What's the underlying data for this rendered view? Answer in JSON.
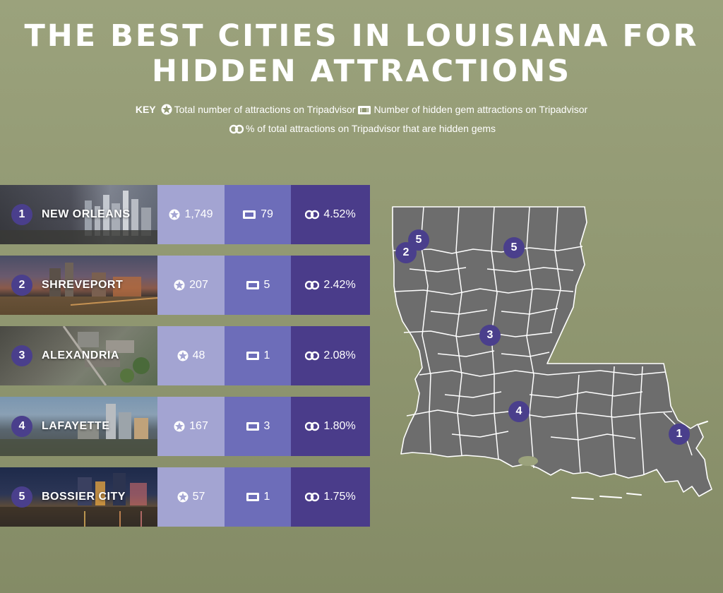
{
  "title": {
    "line1": "THE BEST CITIES IN LOUISIANA FOR",
    "line2": "HIDDEN ATTRACTIONS"
  },
  "key": {
    "label": "KEY",
    "total": "Total number of attractions on Tripadvisor",
    "gems": "Number of hidden gem attractions on Tripadvisor",
    "percent": "% of total attractions on Tripadvisor that are hidden gems"
  },
  "cities": [
    {
      "rank": "1",
      "name": "NEW ORLEANS",
      "total": "1,749",
      "gems": "79",
      "percent": "4.52%"
    },
    {
      "rank": "2",
      "name": "SHREVEPORT",
      "total": "207",
      "gems": "5",
      "percent": "2.42%"
    },
    {
      "rank": "3",
      "name": "ALEXANDRIA",
      "total": "48",
      "gems": "1",
      "percent": "2.08%"
    },
    {
      "rank": "4",
      "name": "LAFAYETTE",
      "total": "167",
      "gems": "3",
      "percent": "1.80%"
    },
    {
      "rank": "5",
      "name": "BOSSIER CITY",
      "total": "57",
      "gems": "1",
      "percent": "1.75%"
    }
  ],
  "map_markers": [
    "5",
    "2",
    "5",
    "3",
    "4",
    "1"
  ],
  "colors": {
    "background": "#9ba27c",
    "total_cell": "#a3a4d2",
    "gems_cell": "#6d6db9",
    "percent_cell": "#4a3c8a",
    "marker": "#4a3f8c",
    "map": "#6d6d6d"
  }
}
